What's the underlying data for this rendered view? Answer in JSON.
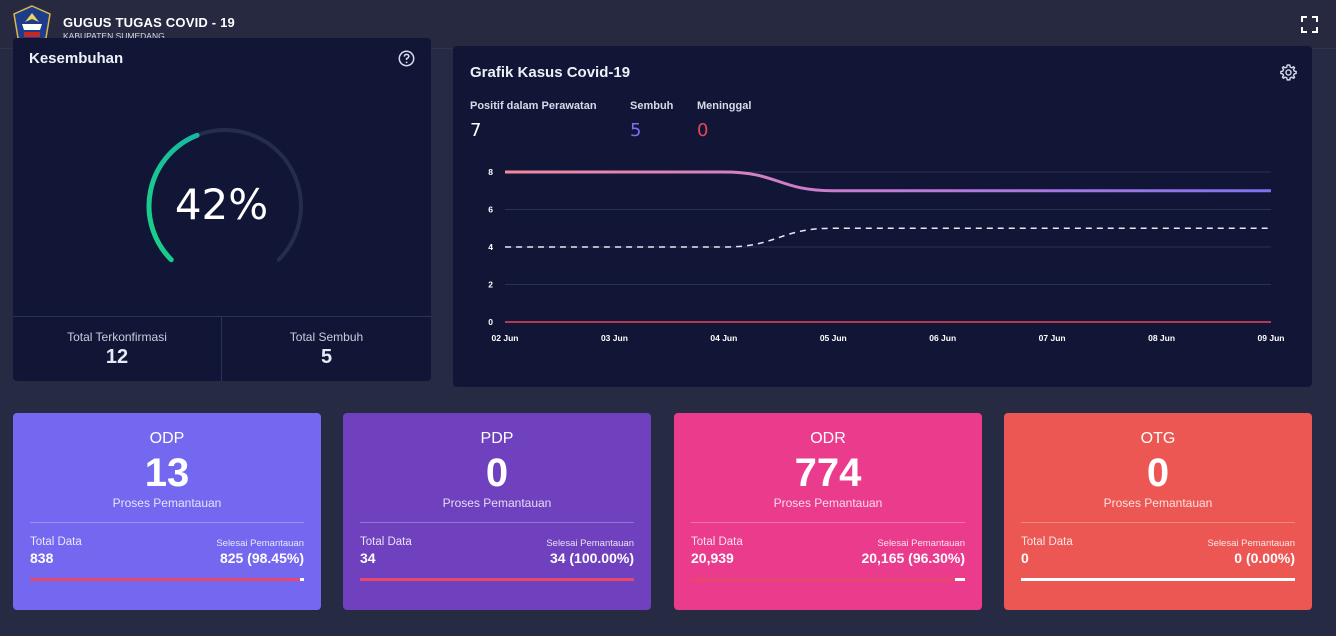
{
  "header": {
    "title": "GUGUS TUGAS COVID - 19",
    "subtitle": "KABUPATEN SUMEDANG",
    "logo_icon": "bnpb-shield-logo",
    "fullscreen_icon": "fullscreen-icon"
  },
  "recovery": {
    "title": "Kesembuhan",
    "percent": 42,
    "percent_label": "42%",
    "total_confirmed_label": "Total Terkonfirmasi",
    "total_confirmed": "12",
    "total_recovered_label": "Total Sembuh",
    "total_recovered": "5"
  },
  "chart_panel": {
    "title": "Grafik Kasus Covid-19",
    "legend": [
      {
        "label": "Positif dalam Perawatan",
        "value": "7",
        "color": "#ffffff"
      },
      {
        "label": "Sembuh",
        "value": "5",
        "color": "#7a70f0"
      },
      {
        "label": "Meninggal",
        "value": "0",
        "color": "#e8475a"
      }
    ]
  },
  "chart_data": {
    "type": "line",
    "title": "Grafik Kasus Covid-19",
    "x": [
      "02 Jun",
      "03 Jun",
      "04 Jun",
      "05 Jun",
      "06 Jun",
      "07 Jun",
      "08 Jun",
      "09 Jun"
    ],
    "ylim": [
      0,
      8
    ],
    "yticks": [
      0,
      2,
      4,
      6,
      8
    ],
    "grid": true,
    "series": [
      {
        "name": "Positif dalam Perawatan",
        "values": [
          8,
          8,
          8,
          7,
          7,
          7,
          7,
          7
        ],
        "style": "solid-gradient"
      },
      {
        "name": "Sembuh",
        "values": [
          4,
          4,
          4,
          5,
          5,
          5,
          5,
          5
        ],
        "style": "dashed"
      },
      {
        "name": "Meninggal",
        "values": [
          0,
          0,
          0,
          0,
          0,
          0,
          0,
          0
        ],
        "style": "solid-red"
      }
    ]
  },
  "cards": [
    {
      "name": "ODP",
      "value": "13",
      "process_label": "Proses Pemantauan",
      "total_label": "Total Data",
      "total": "838",
      "done_label": "Selesai Pemantauan",
      "done": "825 (98.45%)",
      "progress": 98.45,
      "color": "#7468f1"
    },
    {
      "name": "PDP",
      "value": "0",
      "process_label": "Proses Pemantauan",
      "total_label": "Total Data",
      "total": "34",
      "done_label": "Selesai Pemantauan",
      "done": "34 (100.00%)",
      "progress": 100,
      "color": "#6f41bf"
    },
    {
      "name": "ODR",
      "value": "774",
      "process_label": "Proses Pemantauan",
      "total_label": "Total Data",
      "total": "20,939",
      "done_label": "Selesai Pemantauan",
      "done": "20,165 (96.30%)",
      "progress": 96.3,
      "color": "#ea3b8d"
    },
    {
      "name": "OTG",
      "value": "0",
      "process_label": "Proses Pemantauan",
      "total_label": "Total Data",
      "total": "0",
      "done_label": "Selesai Pemantauan",
      "done": "0 (0.00%)",
      "progress": 0,
      "color": "#ec5753"
    }
  ]
}
